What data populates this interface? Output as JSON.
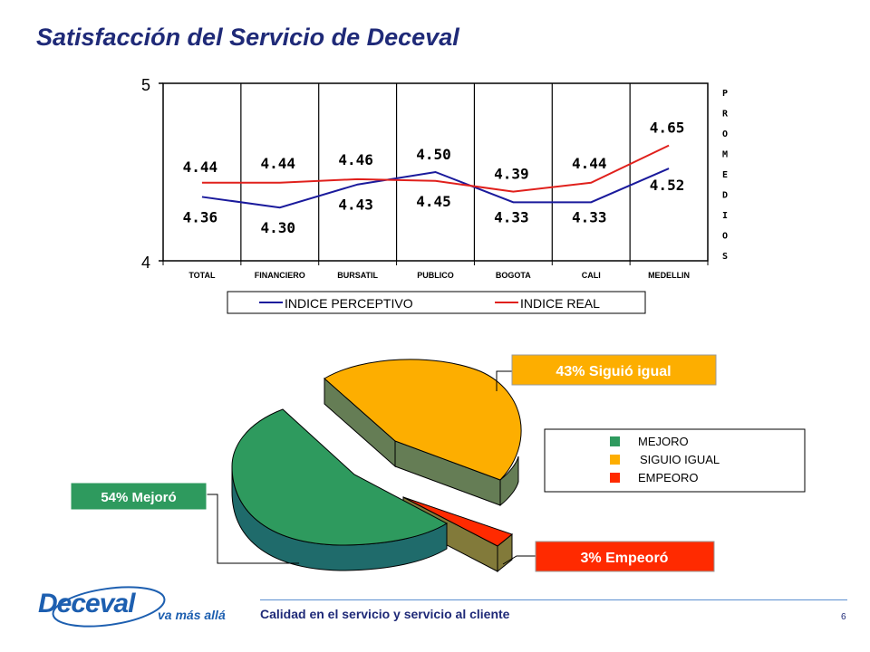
{
  "page": {
    "title": "Satisfacción del Servicio de Deceval",
    "footer_text": "Calidad en el servicio y servicio al cliente",
    "page_number": "6",
    "logo_text": "Deceval",
    "logo_tagline": "va más allá"
  },
  "chart_data": [
    {
      "type": "line",
      "categories": [
        "TOTAL",
        "FINANCIERO",
        "BURSATIL",
        "PUBLICO",
        "BOGOTA",
        "CALI",
        "MEDELLIN"
      ],
      "series": [
        {
          "name": "INDICE PERCEPTIVO",
          "values": [
            4.36,
            4.3,
            4.43,
            4.5,
            4.33,
            4.33,
            4.52
          ],
          "color": "#1a1a9c"
        },
        {
          "name": "INDICE REAL",
          "values": [
            4.44,
            4.44,
            4.46,
            4.45,
            4.39,
            4.44,
            4.65
          ],
          "color": "#e0201c"
        }
      ],
      "value_labels": {
        "perceptivo": [
          "4.36",
          "4.30",
          "4.43",
          "4.50",
          "4.33",
          "4.33",
          "4.52"
        ],
        "real": [
          "4.44",
          "4.44",
          "4.46",
          "4.45",
          "4.39",
          "4.44",
          "4.65"
        ]
      },
      "ylim": [
        4,
        5
      ],
      "yticks": [
        "4",
        "5"
      ],
      "side_label": "PROMEDIOS",
      "grid": "vertical category separators",
      "legend_placement": "bottom"
    },
    {
      "type": "pie",
      "categories": [
        "MEJORO",
        "SIGUIO IGUAL",
        "EMPEORO"
      ],
      "values": [
        54,
        43,
        3
      ],
      "colors": [
        "#2e9a5e",
        "#fdae00",
        "#ff2a00"
      ],
      "callouts": [
        "54% Mejoró",
        "43% Siguió igual",
        "3% Empeoró"
      ],
      "legend_placement": "right"
    }
  ]
}
